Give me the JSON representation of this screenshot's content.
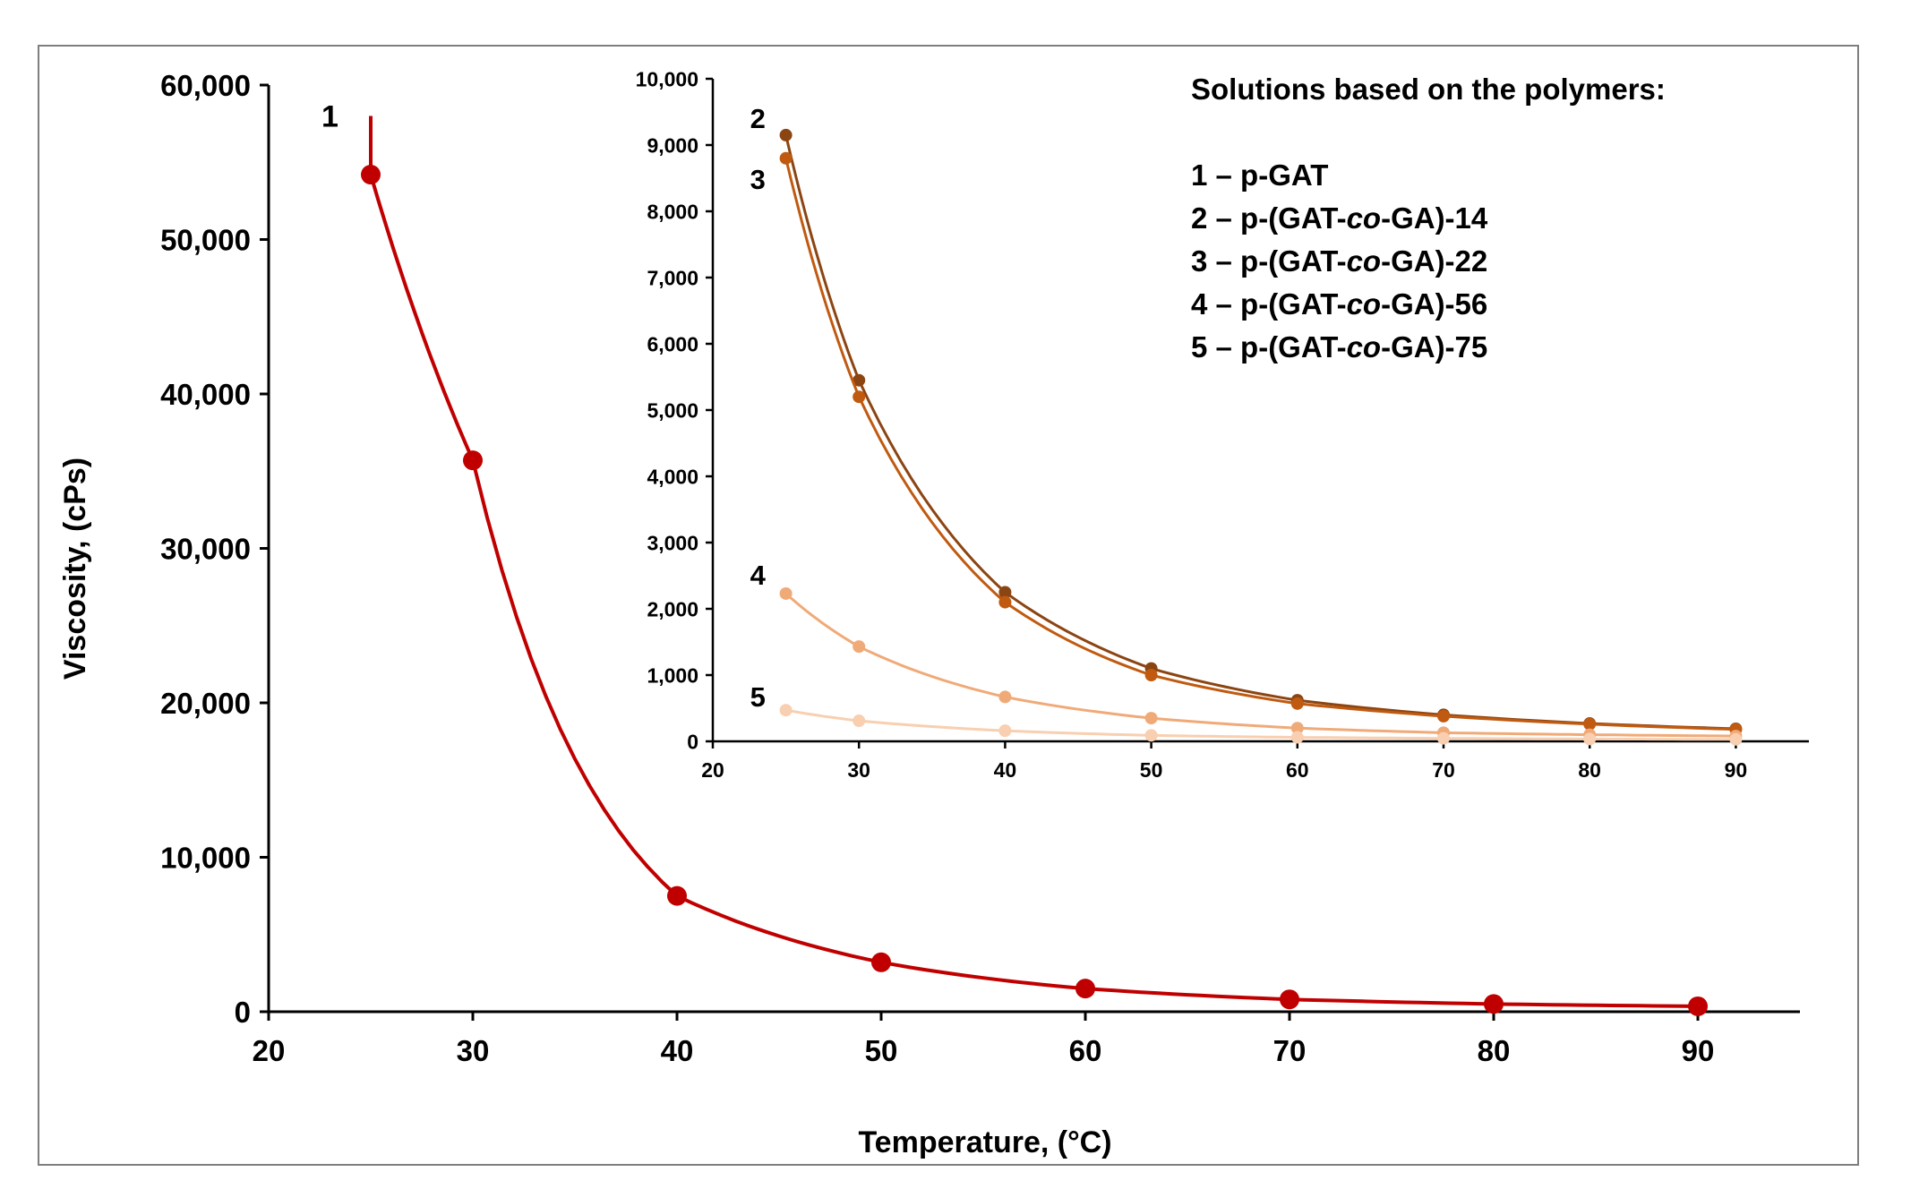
{
  "chart_data": [
    {
      "id": "main",
      "type": "scatter",
      "xlabel": "Temperature, (°C)",
      "ylabel": "Viscosity, (cPs)",
      "xlim": [
        20,
        95
      ],
      "ylim": [
        0,
        60000
      ],
      "xticks": [
        20,
        30,
        40,
        50,
        60,
        70,
        80,
        90
      ],
      "yticks": [
        0,
        10000,
        20000,
        30000,
        40000,
        50000,
        60000
      ],
      "xtick_labels": [
        "20",
        "30",
        "40",
        "50",
        "60",
        "70",
        "80",
        "90"
      ],
      "ytick_labels": [
        "0",
        "10,000",
        "20,000",
        "30,000",
        "40,000",
        "50,000",
        "60,000"
      ],
      "series": [
        {
          "name": "1",
          "label": "1",
          "color": "#c00000",
          "x": [
            25,
            30,
            40,
            50,
            60,
            70,
            80,
            90
          ],
          "y": [
            54200,
            35700,
            7500,
            3200,
            1500,
            800,
            500,
            350
          ],
          "fit": {
            "x0": 25,
            "x1": 90,
            "y_start": 58000
          }
        }
      ]
    },
    {
      "id": "inset",
      "type": "scatter",
      "xlim": [
        20,
        95
      ],
      "ylim": [
        0,
        10000
      ],
      "xticks": [
        20,
        30,
        40,
        50,
        60,
        70,
        80,
        90
      ],
      "yticks": [
        0,
        1000,
        2000,
        3000,
        4000,
        5000,
        6000,
        7000,
        8000,
        9000,
        10000
      ],
      "xtick_labels": [
        "20",
        "30",
        "40",
        "50",
        "60",
        "70",
        "80",
        "90"
      ],
      "ytick_labels": [
        "0",
        "1,000",
        "2,000",
        "3,000",
        "4,000",
        "5,000",
        "6,000",
        "7,000",
        "8,000",
        "9,000",
        "10,000"
      ],
      "series": [
        {
          "name": "2",
          "label": "2",
          "color": "#8b4513",
          "x": [
            25,
            30,
            40,
            50,
            60,
            70,
            80,
            90
          ],
          "y": [
            9150,
            5450,
            2250,
            1100,
            620,
            400,
            270,
            190
          ]
        },
        {
          "name": "3",
          "label": "3",
          "color": "#c05a10",
          "x": [
            25,
            30,
            40,
            50,
            60,
            70,
            80,
            90
          ],
          "y": [
            8800,
            5200,
            2100,
            1000,
            570,
            380,
            260,
            180
          ]
        },
        {
          "name": "4",
          "label": "4",
          "color": "#f0aa78",
          "x": [
            25,
            30,
            40,
            50,
            60,
            70,
            80,
            90
          ],
          "y": [
            2230,
            1430,
            670,
            350,
            200,
            130,
            100,
            80
          ]
        },
        {
          "name": "5",
          "label": "5",
          "color": "#f8cfb0",
          "x": [
            25,
            30,
            40,
            50,
            60,
            70,
            80,
            90
          ],
          "y": [
            470,
            310,
            160,
            90,
            60,
            45,
            35,
            30
          ]
        }
      ]
    }
  ],
  "legend": {
    "title": "Solutions based on the polymers:",
    "entries": [
      {
        "prefix": "1 – p-GAT",
        "italic": "",
        "suffix": ""
      },
      {
        "prefix": "2 – p-(GAT-",
        "italic": "co",
        "suffix": "-GA)-14"
      },
      {
        "prefix": "3 – p-(GAT-",
        "italic": "co",
        "suffix": "-GA)-22"
      },
      {
        "prefix": "4 – p-(GAT-",
        "italic": "co",
        "suffix": "-GA)-56"
      },
      {
        "prefix": "5 – p-(GAT-",
        "italic": "co",
        "suffix": "-GA)-75"
      }
    ]
  }
}
